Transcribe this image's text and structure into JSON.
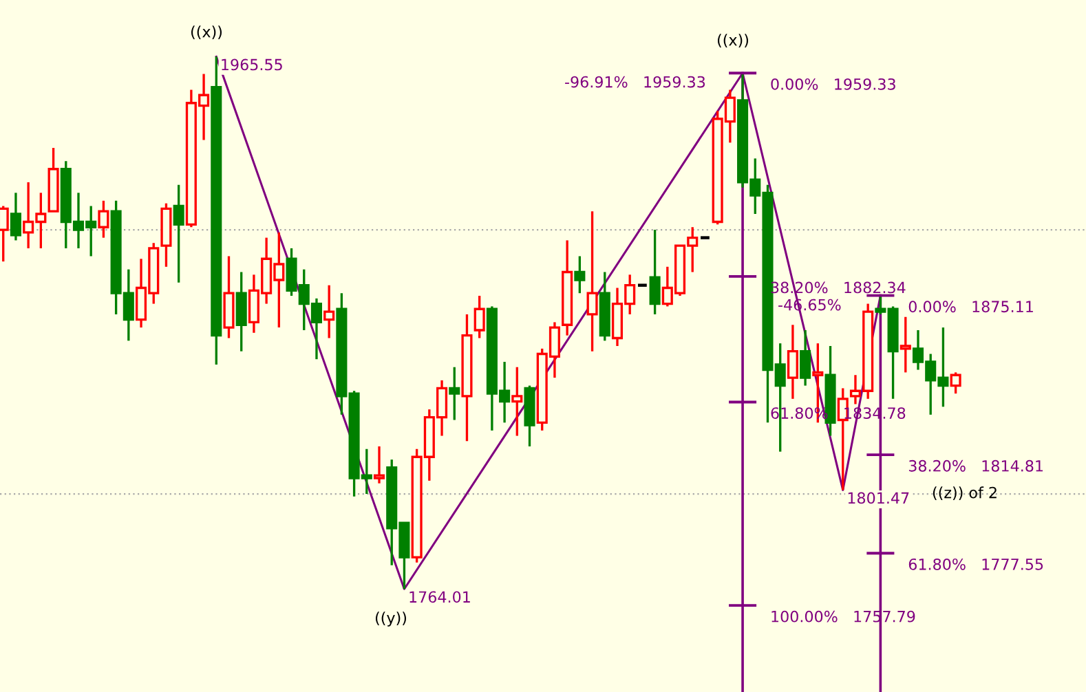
{
  "chart_data": {
    "type": "candlestick",
    "categories": [
      null,
      null,
      null,
      null,
      null,
      null,
      null,
      null,
      null,
      null,
      null,
      null,
      null,
      null,
      null,
      null,
      null,
      null,
      null,
      null,
      null,
      null,
      null,
      null,
      null,
      null,
      null,
      null,
      null,
      null,
      null,
      null,
      null,
      null,
      null,
      null,
      null,
      null,
      null,
      null,
      null,
      null,
      null,
      null,
      null,
      null,
      null,
      null,
      null,
      null,
      null,
      null,
      null,
      null,
      null,
      null,
      null,
      null,
      null,
      null,
      null,
      null,
      null,
      null,
      null,
      null,
      null,
      null,
      null,
      null,
      null,
      null,
      null,
      null,
      null,
      null,
      null
    ],
    "ohlc": [
      [
        1900,
        1909,
        1888,
        1908
      ],
      [
        1906,
        1914,
        1896,
        1898
      ],
      [
        1899,
        1918,
        1893,
        1903
      ],
      [
        1903,
        1914,
        1893,
        1906
      ],
      [
        1907,
        1931,
        1907,
        1923
      ],
      [
        1923,
        1926,
        1893,
        1903
      ],
      [
        1903,
        1914,
        1893,
        1900
      ],
      [
        1903,
        1909,
        1890,
        1901
      ],
      [
        1901,
        1911,
        1897,
        1907
      ],
      [
        1907,
        1911,
        1868,
        1876
      ],
      [
        1876,
        1885,
        1858,
        1866
      ],
      [
        1866,
        1889,
        1863,
        1878
      ],
      [
        1876,
        1895,
        1872,
        1893
      ],
      [
        1894,
        1910,
        1886,
        1908
      ],
      [
        1909,
        1917,
        1880,
        1902
      ],
      [
        1902,
        1953,
        1901,
        1948
      ],
      [
        1947,
        1959,
        1934,
        1951
      ],
      [
        1954,
        1965.55,
        1849,
        1860
      ],
      [
        1863,
        1890,
        1859,
        1876
      ],
      [
        1876,
        1884,
        1854,
        1864
      ],
      [
        1865,
        1883,
        1861,
        1877
      ],
      [
        1876,
        1897,
        1872,
        1889
      ],
      [
        1881,
        1899,
        1863,
        1887
      ],
      [
        1889,
        1893,
        1875,
        1877
      ],
      [
        1879,
        1885,
        1862,
        1872
      ],
      [
        1872,
        1874,
        1851,
        1865
      ],
      [
        1866,
        1879,
        1859,
        1869
      ],
      [
        1870,
        1876,
        1830,
        1837
      ],
      [
        1838,
        1839,
        1799,
        1806
      ],
      [
        1807,
        1817,
        1800,
        1806
      ],
      [
        1806,
        1818,
        1804,
        1807
      ],
      [
        1810,
        1813,
        1773,
        1787
      ],
      [
        1789,
        1789,
        1764.01,
        1776
      ],
      [
        1776,
        1817,
        1774,
        1814
      ],
      [
        1814,
        1832,
        1805,
        1829
      ],
      [
        1829,
        1843,
        1822,
        1840
      ],
      [
        1840,
        1848,
        1828,
        1838
      ],
      [
        1837,
        1868,
        1820,
        1860
      ],
      [
        1862,
        1875,
        1859,
        1870
      ],
      [
        1870,
        1871,
        1824,
        1838
      ],
      [
        1839,
        1850,
        1827,
        1835
      ],
      [
        1835,
        1848,
        1822,
        1837
      ],
      [
        1840,
        1841,
        1818,
        1826
      ],
      [
        1827,
        1855,
        1824,
        1853
      ],
      [
        1852,
        1865,
        1844,
        1863
      ],
      [
        1864,
        1896,
        1860,
        1884
      ],
      [
        1884,
        1890,
        1876,
        1881
      ],
      [
        1868,
        1907,
        1854,
        1876
      ],
      [
        1876,
        1884,
        1858,
        1860
      ],
      [
        1859,
        1878,
        1856,
        1872
      ],
      [
        1872,
        1883,
        1868,
        1879
      ],
      [
        1879,
        1879,
        1879,
        1879
      ],
      [
        1882,
        1900,
        1868,
        1872
      ],
      [
        1872,
        1886,
        1871,
        1878
      ],
      [
        1876,
        1894,
        1875,
        1894
      ],
      [
        1894,
        1901,
        1884,
        1897
      ],
      [
        1897,
        1897,
        1897,
        1897
      ],
      [
        1903,
        1945,
        1902,
        1942
      ],
      [
        1941,
        1953,
        1933,
        1950
      ],
      [
        1949,
        1959.33,
        1916,
        1918
      ],
      [
        1919,
        1927,
        1906,
        1913
      ],
      [
        1914,
        1917,
        1827,
        1847
      ],
      [
        1849,
        1857,
        1816,
        1841
      ],
      [
        1844,
        1864,
        1836,
        1854
      ],
      [
        1854,
        1862,
        1841,
        1844
      ],
      [
        1845,
        1857,
        1827,
        1846
      ],
      [
        1845,
        1856,
        1822,
        1827
      ],
      [
        1828,
        1840,
        1801.47,
        1836
      ],
      [
        1837,
        1845,
        1834,
        1839
      ],
      [
        1839,
        1872,
        1836,
        1869
      ],
      [
        1870,
        1875.11,
        1868,
        1869
      ],
      [
        1870,
        1871,
        1836,
        1854
      ],
      [
        1855,
        1867,
        1846,
        1856
      ],
      [
        1855,
        1862,
        1847,
        1850
      ],
      [
        1850,
        1853,
        1830,
        1843
      ],
      [
        1844,
        1863,
        1833,
        1841
      ],
      [
        1841,
        1846,
        1838,
        1845
      ]
    ],
    "colors": [
      "#ff0000",
      "#008000",
      "#ff0000",
      "#ff0000",
      "#ff0000",
      "#008000",
      "#008000",
      "#008000",
      "#ff0000",
      "#008000",
      "#008000",
      "#ff0000",
      "#ff0000",
      "#ff0000",
      "#008000",
      "#ff0000",
      "#ff0000",
      "#008000",
      "#ff0000",
      "#008000",
      "#ff0000",
      "#ff0000",
      "#ff0000",
      "#008000",
      "#008000",
      "#008000",
      "#ff0000",
      "#008000",
      "#008000",
      "#008000",
      "#ff0000",
      "#008000",
      "#008000",
      "#ff0000",
      "#ff0000",
      "#ff0000",
      "#008000",
      "#ff0000",
      "#ff0000",
      "#008000",
      "#008000",
      "#ff0000",
      "#008000",
      "#ff0000",
      "#ff0000",
      "#ff0000",
      "#008000",
      "#ff0000",
      "#008000",
      "#ff0000",
      "#ff0000",
      "#000000",
      "#008000",
      "#ff0000",
      "#ff0000",
      "#ff0000",
      "#000000",
      "#ff0000",
      "#ff0000",
      "#008000",
      "#008000",
      "#008000",
      "#008000",
      "#ff0000",
      "#008000",
      "#ff0000",
      "#008000",
      "#ff0000",
      "#ff0000",
      "#ff0000",
      "#008000",
      "#008000",
      "#ff0000",
      "#008000",
      "#008000",
      "#008000",
      "#ff0000"
    ],
    "ylim": [
      1725,
      1987
    ],
    "yticks": [
      {
        "value": 1800,
        "label": null
      },
      {
        "value": 1900,
        "label": null
      }
    ],
    "grid": "y",
    "series": [
      {
        "type": "line",
        "color": "#800080",
        "values": [
          null,
          null,
          null,
          null,
          null,
          null,
          null,
          null,
          null,
          null,
          null,
          null,
          null,
          null,
          null,
          null,
          null,
          1965.55,
          null,
          null,
          null,
          null,
          null,
          null,
          null,
          null,
          null,
          null,
          null,
          null,
          null,
          null,
          1764.01,
          null,
          null,
          null,
          null,
          null,
          null,
          null,
          null,
          null,
          null,
          null,
          null,
          null,
          null,
          null,
          null,
          null,
          null,
          null,
          null,
          null,
          null,
          null,
          null,
          null,
          null,
          1959.33,
          null,
          null,
          null,
          null,
          null,
          null,
          null,
          1801.47,
          null,
          null,
          1875.11,
          null,
          null,
          null,
          null,
          null,
          null
        ],
        "value_labels": [
          null,
          null,
          null,
          null,
          null,
          null,
          null,
          null,
          null,
          null,
          null,
          null,
          null,
          null,
          null,
          null,
          null,
          "1965.55",
          null,
          null,
          null,
          null,
          null,
          null,
          null,
          null,
          null,
          null,
          null,
          null,
          null,
          null,
          "1764.01",
          null,
          null,
          null,
          null,
          null,
          null,
          null,
          null,
          null,
          null,
          null,
          null,
          null,
          null,
          null,
          null,
          null,
          null,
          null,
          null,
          null,
          null,
          null,
          null,
          null,
          null,
          null,
          null,
          null,
          null,
          null,
          null,
          null,
          null,
          "1801.47",
          null,
          null,
          null,
          null,
          null,
          null,
          null,
          null,
          null
        ]
      }
    ],
    "ref_lines": [
      {
        "axis": "y",
        "value": 1959.33,
        "label": "0.00%   1959.33",
        "color": "#800080"
      },
      {
        "axis": "y",
        "value": 1882.34,
        "label": "38.20%   1882.34",
        "color": "#800080"
      },
      {
        "axis": "y",
        "value": 1834.78,
        "label": "61.80%   1834.78",
        "color": "#800080"
      },
      {
        "axis": "y",
        "value": 1757.79,
        "label": "100.00%   1757.79",
        "color": "#800080"
      },
      {
        "axis": "y",
        "value": 1875.11,
        "label": "0.00%   1875.11",
        "color": "#800080"
      },
      {
        "axis": "y",
        "value": 1814.81,
        "label": "38.20%   1814.81",
        "color": "#800080"
      },
      {
        "axis": "y",
        "value": 1777.55,
        "label": "61.80%   1777.55",
        "color": "#800080"
      }
    ],
    "annotations": [
      "((x))",
      "((y))",
      "((x))",
      "-96.91%   1959.33",
      "-46.65%",
      "((z)) of 2"
    ]
  }
}
